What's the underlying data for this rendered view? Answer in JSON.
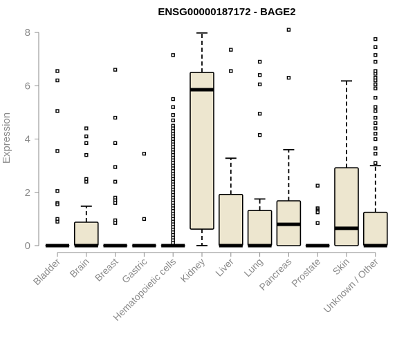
{
  "chart_data": {
    "type": "boxplot",
    "title": "ENSG00000187172 - BAGE2",
    "xlabel": "",
    "ylabel": "Expression",
    "ylim": [
      0,
      8
    ],
    "yticks": [
      0,
      2,
      4,
      6,
      8
    ],
    "grid": false,
    "colors": {
      "box_fill": "#ede6cf",
      "box_stroke": "#000000",
      "axis": "#8a8a8a",
      "title": "#000000"
    },
    "categories": [
      "Bladder",
      "Brain",
      "Breast",
      "Gastric",
      "Hematopoietic cells",
      "Kidney",
      "Liver",
      "Lung",
      "Pancreas",
      "Prostate",
      "Skin",
      "Unknown / Other"
    ],
    "boxes": [
      {
        "category": "Bladder",
        "q1": 0,
        "median": 0,
        "q3": 0,
        "whisker_low": 0,
        "whisker_high": 0,
        "outliers": [
          6.55,
          6.2,
          5.05,
          3.55,
          2.05,
          1.6,
          1.55,
          1.0,
          0.9
        ]
      },
      {
        "category": "Brain",
        "q1": 0,
        "median": 0,
        "q3": 0.88,
        "whisker_low": 0,
        "whisker_high": 1.48,
        "outliers": [
          4.4,
          4.1,
          3.85,
          3.4,
          2.5,
          2.4
        ]
      },
      {
        "category": "Breast",
        "q1": 0,
        "median": 0,
        "q3": 0,
        "whisker_low": 0,
        "whisker_high": 0,
        "outliers": [
          6.6,
          4.8,
          3.85,
          2.95,
          2.4,
          1.8,
          1.7,
          1.6,
          0.95,
          0.85
        ]
      },
      {
        "category": "Gastric",
        "q1": 0,
        "median": 0,
        "q3": 0,
        "whisker_low": 0,
        "whisker_high": 0,
        "outliers": [
          3.45,
          1.0
        ]
      },
      {
        "category": "Hematopoietic cells",
        "q1": 0,
        "median": 0,
        "q3": 0,
        "whisker_low": 0,
        "whisker_high": 0,
        "outliers": [
          7.15,
          5.5,
          5.2,
          4.9,
          4.7,
          4.5,
          4.4,
          4.3,
          4.2,
          4.1,
          4.0,
          3.9,
          3.8,
          3.7,
          3.6,
          3.5,
          3.4,
          3.3,
          3.2,
          3.1,
          3.0,
          2.9,
          2.8,
          2.7,
          2.6,
          2.5,
          2.4,
          2.3,
          2.2,
          2.1,
          2.0,
          1.9,
          1.8,
          1.7,
          1.6,
          1.5,
          1.4,
          1.3,
          1.2,
          1.1,
          1.0,
          0.9,
          0.8,
          0.7,
          0.6,
          0.5,
          0.4,
          0.3,
          0.2,
          0.1
        ]
      },
      {
        "category": "Kidney",
        "q1": 0.62,
        "median": 5.85,
        "q3": 6.5,
        "whisker_low": 0,
        "whisker_high": 7.98,
        "outliers": []
      },
      {
        "category": "Liver",
        "q1": 0,
        "median": 0,
        "q3": 1.92,
        "whisker_low": 0,
        "whisker_high": 3.28,
        "outliers": [
          7.35,
          6.55
        ]
      },
      {
        "category": "Lung",
        "q1": 0,
        "median": 0,
        "q3": 1.32,
        "whisker_low": 0,
        "whisker_high": 1.75,
        "outliers": [
          6.9,
          6.4,
          6.05,
          4.95,
          4.15
        ]
      },
      {
        "category": "Pancreas",
        "q1": 0,
        "median": 0.8,
        "q3": 1.68,
        "whisker_low": 0,
        "whisker_high": 3.6,
        "outliers": [
          8.1,
          6.3
        ]
      },
      {
        "category": "Prostate",
        "q1": 0,
        "median": 0,
        "q3": 0,
        "whisker_low": 0,
        "whisker_high": 0,
        "outliers": [
          2.25,
          1.4,
          1.35,
          1.3,
          1.25,
          0.85
        ]
      },
      {
        "category": "Skin",
        "q1": 0,
        "median": 0.65,
        "q3": 2.92,
        "whisker_low": 0,
        "whisker_high": 6.18,
        "outliers": []
      },
      {
        "category": "Unknown / Other",
        "q1": 0,
        "median": 0,
        "q3": 1.25,
        "whisker_low": 0,
        "whisker_high": 3.0,
        "outliers": [
          7.75,
          7.45,
          7.15,
          6.9,
          6.55,
          6.45,
          6.3,
          6.2,
          6.05,
          5.9,
          5.55,
          5.2,
          5.05,
          4.8,
          4.6,
          4.4,
          4.2,
          4.0,
          3.65,
          3.45,
          3.1
        ]
      }
    ]
  }
}
